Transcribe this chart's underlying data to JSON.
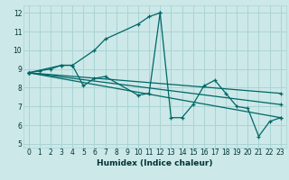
{
  "xlabel": "Humidex (Indice chaleur)",
  "xlim": [
    -0.5,
    23.5
  ],
  "ylim": [
    4.8,
    12.4
  ],
  "yticks": [
    5,
    6,
    7,
    8,
    9,
    10,
    11,
    12
  ],
  "xticks": [
    0,
    1,
    2,
    3,
    4,
    5,
    6,
    7,
    8,
    9,
    10,
    11,
    12,
    13,
    14,
    15,
    16,
    17,
    18,
    19,
    20,
    21,
    22,
    23
  ],
  "bg_color": "#cce8e8",
  "line_color": "#006666",
  "grid_color": "#aad4d4",
  "lines": [
    {
      "x": [
        0,
        1,
        2,
        3,
        4,
        5,
        6,
        7,
        10,
        11,
        12,
        13,
        14,
        15,
        16,
        17,
        18,
        19,
        20,
        21,
        22,
        23
      ],
      "y": [
        8.8,
        8.9,
        9.0,
        9.2,
        9.2,
        8.1,
        8.5,
        8.6,
        7.6,
        7.7,
        12.0,
        6.4,
        6.4,
        7.1,
        8.1,
        8.4,
        7.7,
        7.0,
        6.9,
        5.4,
        6.2,
        6.4
      ]
    },
    {
      "x": [
        0,
        3,
        4,
        6,
        7,
        10,
        11,
        12
      ],
      "y": [
        8.8,
        9.2,
        9.2,
        10.0,
        10.6,
        11.4,
        11.8,
        12.0
      ]
    },
    {
      "x": [
        0,
        23
      ],
      "y": [
        8.8,
        6.4
      ]
    },
    {
      "x": [
        0,
        23
      ],
      "y": [
        8.8,
        7.1
      ]
    },
    {
      "x": [
        0,
        23
      ],
      "y": [
        8.8,
        7.7
      ]
    }
  ]
}
